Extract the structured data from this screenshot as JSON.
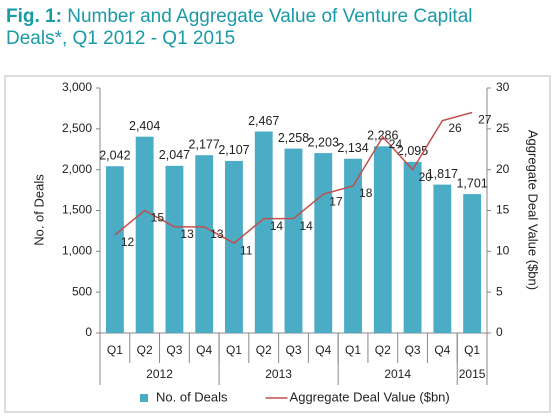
{
  "chart_data": {
    "type": "bar",
    "title_prefix": "Fig. 1:",
    "title": "Number and Aggregate Value of Venture Capital Deals*, Q1 2012 - Q1 2015",
    "categories": [
      "Q1",
      "Q2",
      "Q3",
      "Q4",
      "Q1",
      "Q2",
      "Q3",
      "Q4",
      "Q1",
      "Q2",
      "Q3",
      "Q4",
      "Q1"
    ],
    "year_groups": [
      {
        "label": "2012",
        "count": 4
      },
      {
        "label": "2013",
        "count": 4
      },
      {
        "label": "2014",
        "count": 4
      },
      {
        "label": "2015",
        "count": 1
      }
    ],
    "ylabel": "No. of Deals",
    "y2label": "Aggregate Deal Value ($bn)",
    "ylim": [
      0,
      3000
    ],
    "yticks": [
      0,
      500,
      {
        "value": 1000,
        "label": "1,000"
      },
      {
        "value": 1500,
        "label": "1,500"
      },
      {
        "value": 2000,
        "label": "2,000"
      },
      {
        "value": 2500,
        "label": "2,500"
      },
      {
        "value": 3000,
        "label": "3,000"
      }
    ],
    "y2lim": [
      0,
      30
    ],
    "y2ticks": [
      0,
      5,
      10,
      15,
      20,
      25,
      30
    ],
    "legend": "bottom",
    "series": [
      {
        "name": "No. of Deals",
        "type": "bar",
        "color": "#4bacc6",
        "values": [
          2042,
          2404,
          2047,
          2177,
          2107,
          2467,
          2258,
          2203,
          2134,
          2286,
          2095,
          1817,
          1701
        ],
        "value_labels": [
          "2,042",
          "2,404",
          "2,047",
          "2,177",
          "2,107",
          "2,467",
          "2,258",
          "2,203",
          "2,134",
          "2,286",
          "2,095",
          "1,817",
          "1,701"
        ]
      },
      {
        "name": "Aggregate Deal Value ($bn)",
        "type": "line",
        "axis": "y2",
        "color": "#c0504d",
        "values": [
          12,
          15,
          13,
          13,
          11,
          14,
          14,
          17,
          18,
          24,
          20,
          26,
          27
        ]
      }
    ]
  }
}
